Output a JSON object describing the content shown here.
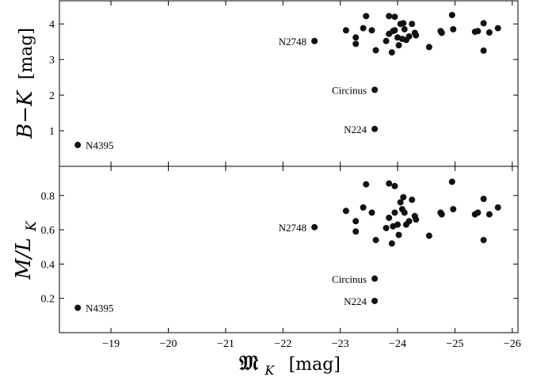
{
  "chart_data": {
    "type": "scatter",
    "shared_x": {
      "label_main": "𝔐",
      "label_sub": "K",
      "label_unit": "[mag]",
      "lim": [
        -18.1,
        -26.1
      ],
      "ticks": [
        -19,
        -20,
        -21,
        -22,
        -23,
        -24,
        -25,
        -26
      ],
      "tick_labels": [
        "−19",
        "−20",
        "−21",
        "−22",
        "−23",
        "−24",
        "−25",
        "−26"
      ]
    },
    "panels": [
      {
        "id": "top",
        "ylabel_main": "B−K",
        "ylabel_unit": "[mag]",
        "ylim": [
          0.0,
          4.65
        ],
        "yticks": [
          1,
          2,
          3,
          4
        ],
        "ytick_labels": [
          "1",
          "2",
          "3",
          "4"
        ],
        "annotations": [
          {
            "text": "N4395",
            "x": -18.42,
            "y": 0.6
          },
          {
            "text": "N2748",
            "x": -22.55,
            "y": 3.52
          },
          {
            "text": "Circinus",
            "x": -23.6,
            "y": 2.15
          },
          {
            "text": "N224",
            "x": -23.6,
            "y": 1.05
          }
        ],
        "points": [
          [
            -18.42,
            0.6
          ],
          [
            -22.55,
            3.52
          ],
          [
            -23.6,
            2.15
          ],
          [
            -23.6,
            1.05
          ],
          [
            -23.1,
            3.82
          ],
          [
            -23.27,
            3.62
          ],
          [
            -23.27,
            3.44
          ],
          [
            -23.4,
            3.88
          ],
          [
            -23.45,
            4.22
          ],
          [
            -23.55,
            3.82
          ],
          [
            -23.62,
            3.26
          ],
          [
            -23.8,
            3.52
          ],
          [
            -23.85,
            4.22
          ],
          [
            -23.85,
            3.72
          ],
          [
            -23.9,
            3.2
          ],
          [
            -23.95,
            4.2
          ],
          [
            -23.95,
            3.82
          ],
          [
            -24.0,
            3.62
          ],
          [
            -24.02,
            3.4
          ],
          [
            -24.05,
            4.0
          ],
          [
            -24.1,
            4.02
          ],
          [
            -24.12,
            3.85
          ],
          [
            -24.15,
            3.55
          ],
          [
            -24.2,
            3.65
          ],
          [
            -24.25,
            4.0
          ],
          [
            -24.3,
            3.75
          ],
          [
            -24.32,
            3.68
          ],
          [
            -23.92,
            3.8
          ],
          [
            -24.08,
            3.58
          ],
          [
            -24.55,
            3.35
          ],
          [
            -24.75,
            3.8
          ],
          [
            -24.77,
            3.75
          ],
          [
            -24.95,
            4.25
          ],
          [
            -24.97,
            3.85
          ],
          [
            -25.35,
            3.78
          ],
          [
            -25.4,
            3.8
          ],
          [
            -25.5,
            4.02
          ],
          [
            -25.5,
            3.25
          ],
          [
            -25.6,
            3.76
          ],
          [
            -25.75,
            3.88
          ]
        ]
      },
      {
        "id": "bottom",
        "ylabel_main": "M/L",
        "ylabel_sub": "K",
        "ylim": [
          0.0,
          0.97
        ],
        "yticks": [
          0.2,
          0.4,
          0.6,
          0.8
        ],
        "ytick_labels": [
          "0.2",
          "0.4",
          "0.6",
          "0.8"
        ],
        "annotations": [
          {
            "text": "N4395",
            "x": -18.42,
            "y": 0.145
          },
          {
            "text": "N2748",
            "x": -22.55,
            "y": 0.615
          },
          {
            "text": "Circinus",
            "x": -23.6,
            "y": 0.315
          },
          {
            "text": "N224",
            "x": -23.6,
            "y": 0.185
          }
        ],
        "points": [
          [
            -18.42,
            0.145
          ],
          [
            -22.55,
            0.615
          ],
          [
            -23.6,
            0.315
          ],
          [
            -23.6,
            0.185
          ],
          [
            -23.1,
            0.71
          ],
          [
            -23.27,
            0.65
          ],
          [
            -23.27,
            0.59
          ],
          [
            -23.4,
            0.73
          ],
          [
            -23.45,
            0.865
          ],
          [
            -23.55,
            0.7
          ],
          [
            -23.62,
            0.54
          ],
          [
            -23.8,
            0.61
          ],
          [
            -23.85,
            0.87
          ],
          [
            -23.85,
            0.67
          ],
          [
            -23.9,
            0.52
          ],
          [
            -23.95,
            0.855
          ],
          [
            -23.95,
            0.7
          ],
          [
            -24.0,
            0.63
          ],
          [
            -24.02,
            0.57
          ],
          [
            -24.05,
            0.76
          ],
          [
            -24.1,
            0.79
          ],
          [
            -24.12,
            0.7
          ],
          [
            -24.15,
            0.63
          ],
          [
            -24.2,
            0.65
          ],
          [
            -24.25,
            0.775
          ],
          [
            -24.3,
            0.68
          ],
          [
            -24.32,
            0.66
          ],
          [
            -23.92,
            0.62
          ],
          [
            -24.08,
            0.72
          ],
          [
            -24.55,
            0.565
          ],
          [
            -24.75,
            0.7
          ],
          [
            -24.77,
            0.69
          ],
          [
            -24.95,
            0.88
          ],
          [
            -24.97,
            0.72
          ],
          [
            -25.35,
            0.69
          ],
          [
            -25.4,
            0.7
          ],
          [
            -25.5,
            0.78
          ],
          [
            -25.5,
            0.54
          ],
          [
            -25.6,
            0.69
          ],
          [
            -25.75,
            0.73
          ]
        ]
      }
    ]
  }
}
